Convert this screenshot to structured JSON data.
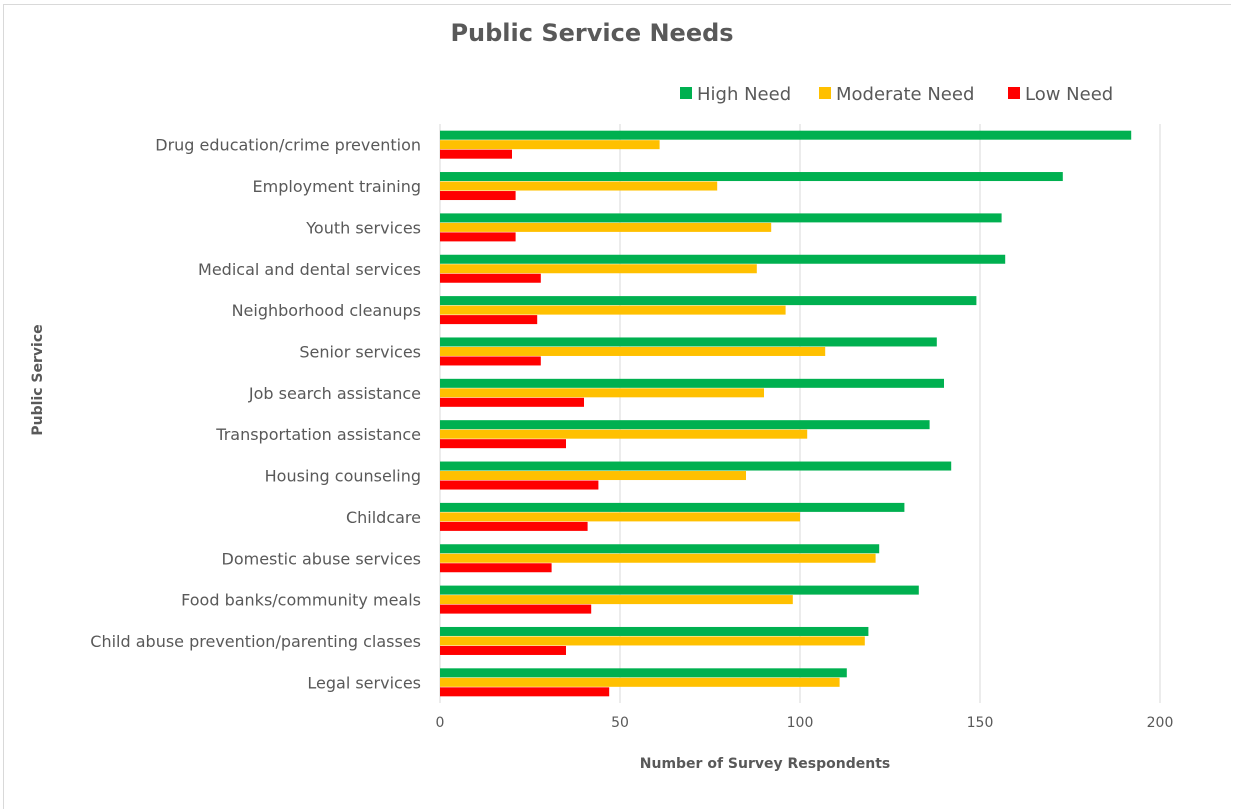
{
  "chart_data": {
    "type": "bar",
    "orientation": "horizontal",
    "title": "Public Service Needs",
    "xlabel": "Number of Survey Respondents",
    "ylabel": "Public Service",
    "xlim": [
      0,
      200
    ],
    "xticks": [
      0,
      50,
      100,
      150,
      200
    ],
    "grid": true,
    "legend_position": "top-right",
    "categories": [
      "Drug education/crime prevention",
      "Employment training",
      "Youth services",
      "Medical and dental services",
      "Neighborhood cleanups",
      "Senior services",
      "Job search assistance",
      "Transportation assistance",
      "Housing counseling",
      "Childcare",
      "Domestic abuse services",
      "Food banks/community meals",
      "Child abuse prevention/parenting classes",
      "Legal services"
    ],
    "series": [
      {
        "name": "High Need",
        "color": "#00b050",
        "values": [
          192,
          173,
          156,
          157,
          149,
          138,
          140,
          136,
          142,
          129,
          122,
          133,
          119,
          113
        ]
      },
      {
        "name": "Moderate Need",
        "color": "#ffc000",
        "values": [
          61,
          77,
          92,
          88,
          96,
          107,
          90,
          102,
          85,
          100,
          121,
          98,
          118,
          111
        ]
      },
      {
        "name": "Low Need",
        "color": "#ff0000",
        "values": [
          20,
          21,
          21,
          28,
          27,
          28,
          40,
          35,
          44,
          41,
          31,
          42,
          35,
          47
        ]
      }
    ]
  }
}
